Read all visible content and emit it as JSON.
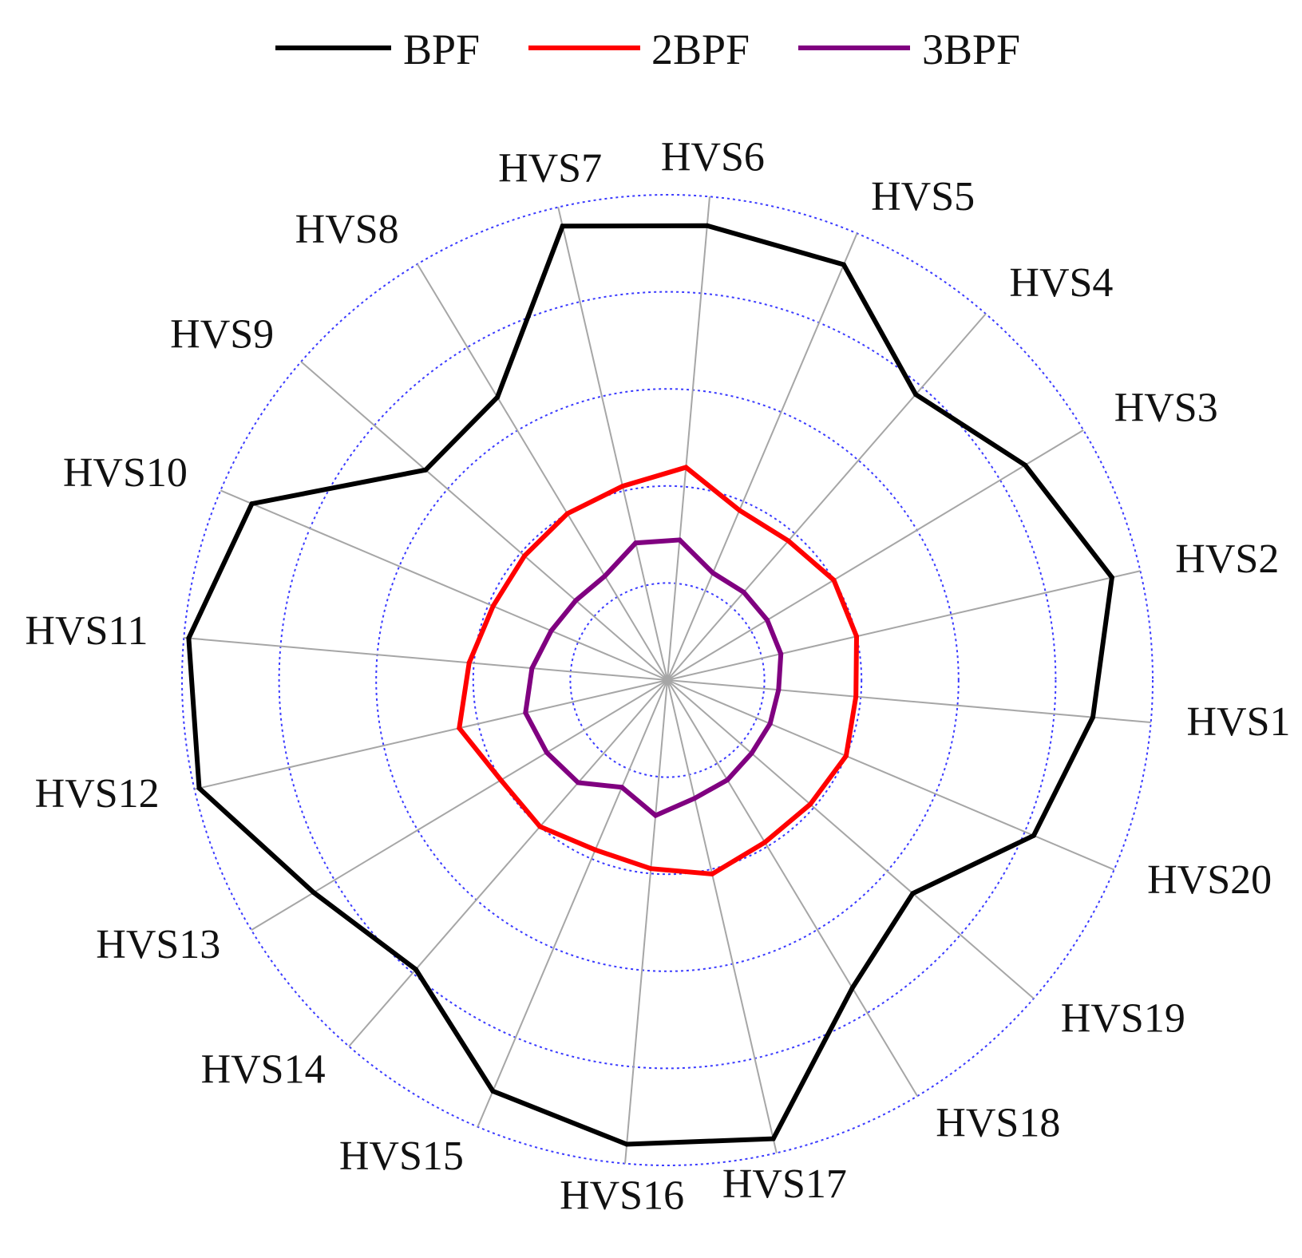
{
  "chart_data": {
    "type": "radar",
    "axes": [
      "HVS1",
      "HVS2",
      "HVS3",
      "HVS4",
      "HVS5",
      "HVS6",
      "HVS7",
      "HVS8",
      "HVS9",
      "HVS10",
      "HVS11",
      "HVS12",
      "HVS13",
      "HVS14",
      "HVS15",
      "HVS16",
      "HVS17",
      "HVS18",
      "HVS19",
      "HVS20"
    ],
    "rlim": [
      0,
      5
    ],
    "rings": [
      1,
      2,
      3,
      4,
      5
    ],
    "grid": true,
    "legend": "top",
    "series": [
      {
        "name": "BPF",
        "color": "#000000",
        "values": [
          4.4,
          4.7,
          4.3,
          3.9,
          4.65,
          4.7,
          4.8,
          3.4,
          3.3,
          4.65,
          4.95,
          4.95,
          4.25,
          3.95,
          4.6,
          4.8,
          4.85,
          3.7,
          3.35,
          4.1
        ]
      },
      {
        "name": "2BPF",
        "color": "#ff0000",
        "values": [
          1.95,
          2.0,
          2.0,
          1.9,
          1.9,
          2.2,
          2.05,
          2.0,
          1.95,
          1.95,
          2.05,
          2.2,
          2.0,
          2.0,
          1.9,
          1.95,
          2.05,
          1.95,
          1.95,
          2.0
        ]
      },
      {
        "name": "3BPF",
        "color": "#800080",
        "values": [
          1.15,
          1.2,
          1.2,
          1.2,
          1.2,
          1.45,
          1.45,
          1.25,
          1.25,
          1.3,
          1.4,
          1.5,
          1.45,
          1.4,
          1.2,
          1.4,
          1.25,
          1.2,
          1.15,
          1.15
        ]
      }
    ]
  }
}
